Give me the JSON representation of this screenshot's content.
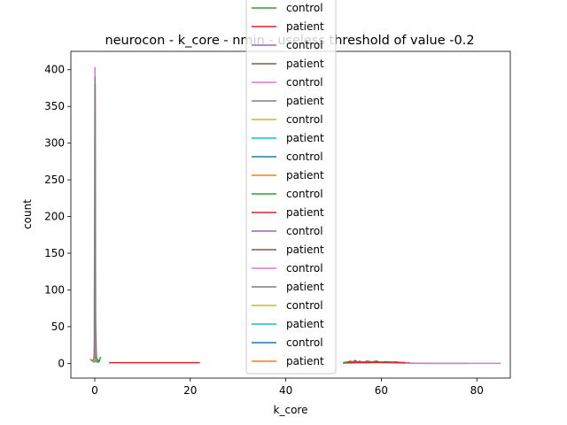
{
  "chart_data": {
    "type": "line",
    "title": "neurocon - k_core - nmin - useless threshold of value -0.2",
    "xlabel": "k_core",
    "ylabel": "count",
    "xlim": [
      -5,
      87
    ],
    "ylim": [
      -20,
      425
    ],
    "x_ticks": [
      0,
      20,
      40,
      60,
      80
    ],
    "y_ticks": [
      0,
      50,
      100,
      150,
      200,
      250,
      300,
      350,
      400
    ],
    "grid": false,
    "legend_position": "top-center",
    "legend": [
      {
        "label": "control",
        "color": "#2ca02c"
      },
      {
        "label": "patient",
        "color": "#d62728"
      },
      {
        "label": "control",
        "color": "#9467bd"
      },
      {
        "label": "patient",
        "color": "#8c564b"
      },
      {
        "label": "control",
        "color": "#e377c2"
      },
      {
        "label": "patient",
        "color": "#7f7f7f"
      },
      {
        "label": "control",
        "color": "#bcbd22"
      },
      {
        "label": "patient",
        "color": "#17becf"
      },
      {
        "label": "control",
        "color": "#1f77b4"
      },
      {
        "label": "patient",
        "color": "#ff7f0e"
      },
      {
        "label": "control",
        "color": "#2ca02c"
      },
      {
        "label": "patient",
        "color": "#d62728"
      },
      {
        "label": "control",
        "color": "#9467bd"
      },
      {
        "label": "patient",
        "color": "#8c564b"
      },
      {
        "label": "control",
        "color": "#e377c2"
      },
      {
        "label": "patient",
        "color": "#7f7f7f"
      },
      {
        "label": "control",
        "color": "#bcbd22"
      },
      {
        "label": "patient",
        "color": "#17becf"
      },
      {
        "label": "control",
        "color": "#1f77b4"
      },
      {
        "label": "patient",
        "color": "#ff7f0e"
      }
    ],
    "series": [
      {
        "color": "#1f77b4",
        "x": [
          -0.5,
          0,
          0.2,
          0.4,
          0.6,
          0.8,
          1.0
        ],
        "y": [
          4,
          3,
          6,
          2,
          5,
          3,
          2
        ]
      },
      {
        "color": "#ff7f0e",
        "x": [
          -1,
          -0.5,
          0,
          0.3,
          0.6,
          1.0
        ],
        "y": [
          6,
          3,
          2,
          5,
          3,
          2
        ]
      },
      {
        "color": "#2ca02c",
        "x": [
          -0.5,
          0,
          0.2,
          0.4,
          0.6,
          1.0,
          1.2
        ],
        "y": [
          3,
          8,
          4,
          7,
          5,
          3,
          9
        ]
      },
      {
        "color": "#d62728",
        "x": [
          3,
          22
        ],
        "y": [
          1,
          1
        ]
      },
      {
        "color": "#9467bd",
        "x": [
          -0.2,
          0,
          0.1,
          0.2,
          0.4,
          0.6
        ],
        "y": [
          2,
          30,
          380,
          10,
          3,
          1
        ]
      },
      {
        "color": "#8c564b",
        "x": [
          -0.5,
          0,
          0.3,
          0.5,
          0.8
        ],
        "y": [
          5,
          3,
          12,
          4,
          2
        ]
      },
      {
        "color": "#e377c2",
        "x": [
          -0.1,
          0,
          0.05,
          0.1,
          0.15,
          0.3,
          0.6
        ],
        "y": [
          2,
          50,
          403,
          200,
          40,
          5,
          1
        ]
      },
      {
        "color": "#7f7f7f",
        "x": [
          -0.1,
          0.05,
          0.15,
          0.25,
          0.35,
          0.5,
          0.8
        ],
        "y": [
          3,
          390,
          60,
          36,
          10,
          4,
          1
        ]
      },
      {
        "color": "#bcbd22",
        "x": [
          -0.3,
          0,
          0.2,
          0.5
        ],
        "y": [
          2,
          6,
          3,
          1
        ]
      },
      {
        "color": "#17becf",
        "x": [
          -0.2,
          0.1,
          0.4
        ],
        "y": [
          1,
          4,
          2
        ]
      },
      {
        "color": "#8c564b",
        "x": [
          52,
          53,
          53.5,
          54,
          54.5,
          55,
          55.5,
          56,
          57,
          58,
          59,
          60,
          61,
          62,
          63,
          64,
          65,
          66
        ],
        "y": [
          1,
          2,
          3,
          2,
          4,
          2,
          3,
          1,
          3,
          2,
          3,
          1,
          2,
          1,
          2,
          1,
          1,
          1
        ]
      },
      {
        "color": "#7f7f7f",
        "x": [
          52,
          54,
          56,
          58,
          60,
          62,
          64,
          66,
          70,
          74,
          78
        ],
        "y": [
          1,
          2,
          1,
          2,
          1,
          1,
          1,
          0,
          0,
          0,
          0
        ]
      },
      {
        "color": "#e377c2",
        "x": [
          52,
          55,
          60,
          70,
          78,
          85
        ],
        "y": [
          0,
          1,
          1,
          0,
          0,
          0
        ]
      },
      {
        "color": "#2ca02c",
        "x": [
          52,
          56,
          60,
          64
        ],
        "y": [
          1,
          2,
          1,
          1
        ]
      },
      {
        "color": "#d62728",
        "x": [
          53,
          57,
          61,
          65
        ],
        "y": [
          1,
          1,
          2,
          1
        ]
      }
    ]
  }
}
